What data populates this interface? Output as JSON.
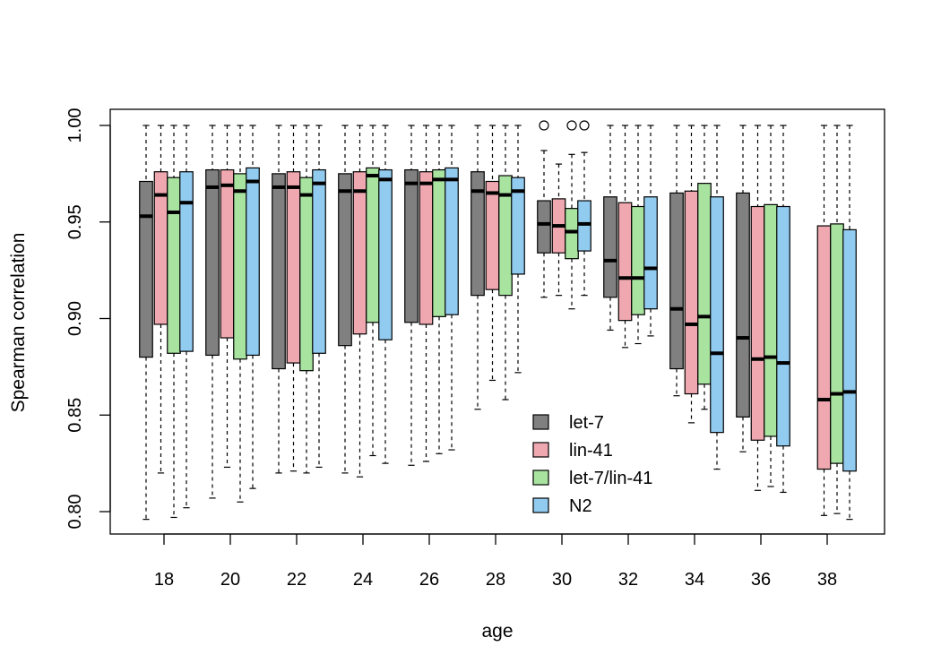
{
  "chart_data": {
    "type": "boxplot",
    "title": "",
    "xlabel": "age",
    "ylabel": "Spearman correlation",
    "ylim": [
      0.787,
      1.005
    ],
    "yticks": [
      0.8,
      0.85,
      0.9,
      0.95,
      1.0
    ],
    "ytick_labels": [
      "0.80",
      "0.85",
      "0.90",
      "0.95",
      "1.00"
    ],
    "categories": [
      "18",
      "20",
      "22",
      "24",
      "26",
      "28",
      "30",
      "32",
      "34",
      "36",
      "38"
    ],
    "legend_position": "center-bottom inside plot",
    "series": [
      {
        "name": "let-7",
        "color": "#808080",
        "boxes": [
          {
            "min": 0.796,
            "q1": 0.88,
            "median": 0.953,
            "q3": 0.971,
            "max": 1.0
          },
          {
            "min": 0.807,
            "q1": 0.881,
            "median": 0.968,
            "q3": 0.977,
            "max": 1.0
          },
          {
            "min": 0.82,
            "q1": 0.874,
            "median": 0.968,
            "q3": 0.975,
            "max": 1.0
          },
          {
            "min": 0.82,
            "q1": 0.886,
            "median": 0.966,
            "q3": 0.975,
            "max": 1.0
          },
          {
            "min": 0.824,
            "q1": 0.898,
            "median": 0.97,
            "q3": 0.977,
            "max": 1.0
          },
          {
            "min": 0.853,
            "q1": 0.912,
            "median": 0.966,
            "q3": 0.976,
            "max": 1.0
          },
          {
            "min": 0.911,
            "q1": 0.934,
            "median": 0.949,
            "q3": 0.961,
            "max": 0.987,
            "outliers": [
              1.0
            ]
          },
          {
            "min": 0.894,
            "q1": 0.911,
            "median": 0.93,
            "q3": 0.963,
            "max": 1.0
          },
          {
            "min": 0.86,
            "q1": 0.874,
            "median": 0.905,
            "q3": 0.965,
            "max": 1.0
          },
          {
            "min": 0.831,
            "q1": 0.849,
            "median": 0.89,
            "q3": 0.965,
            "max": 1.0
          },
          null
        ]
      },
      {
        "name": "lin-41",
        "color": "#f0a8b0",
        "boxes": [
          {
            "min": 0.82,
            "q1": 0.897,
            "median": 0.964,
            "q3": 0.976,
            "max": 1.0
          },
          {
            "min": 0.823,
            "q1": 0.89,
            "median": 0.969,
            "q3": 0.977,
            "max": 1.0
          },
          {
            "min": 0.821,
            "q1": 0.877,
            "median": 0.968,
            "q3": 0.976,
            "max": 1.0
          },
          {
            "min": 0.818,
            "q1": 0.892,
            "median": 0.966,
            "q3": 0.976,
            "max": 1.0
          },
          {
            "min": 0.826,
            "q1": 0.897,
            "median": 0.97,
            "q3": 0.976,
            "max": 1.0
          },
          {
            "min": 0.868,
            "q1": 0.915,
            "median": 0.965,
            "q3": 0.971,
            "max": 1.0
          },
          {
            "min": 0.912,
            "q1": 0.934,
            "median": 0.948,
            "q3": 0.962,
            "max": 0.98
          },
          {
            "min": 0.885,
            "q1": 0.899,
            "median": 0.921,
            "q3": 0.96,
            "max": 1.0
          },
          {
            "min": 0.846,
            "q1": 0.861,
            "median": 0.897,
            "q3": 0.966,
            "max": 1.0
          },
          {
            "min": 0.811,
            "q1": 0.837,
            "median": 0.879,
            "q3": 0.958,
            "max": 1.0
          },
          {
            "min": 0.798,
            "q1": 0.822,
            "median": 0.858,
            "q3": 0.948,
            "max": 1.0
          }
        ]
      },
      {
        "name": "let-7/lin-41",
        "color": "#a8e4a0",
        "boxes": [
          {
            "min": 0.797,
            "q1": 0.882,
            "median": 0.955,
            "q3": 0.973,
            "max": 1.0
          },
          {
            "min": 0.805,
            "q1": 0.879,
            "median": 0.966,
            "q3": 0.975,
            "max": 1.0
          },
          {
            "min": 0.82,
            "q1": 0.873,
            "median": 0.964,
            "q3": 0.973,
            "max": 1.0
          },
          {
            "min": 0.829,
            "q1": 0.898,
            "median": 0.974,
            "q3": 0.978,
            "max": 1.0
          },
          {
            "min": 0.83,
            "q1": 0.901,
            "median": 0.972,
            "q3": 0.977,
            "max": 1.0
          },
          {
            "min": 0.858,
            "q1": 0.912,
            "median": 0.964,
            "q3": 0.974,
            "max": 1.0
          },
          {
            "min": 0.905,
            "q1": 0.931,
            "median": 0.945,
            "q3": 0.957,
            "max": 0.985,
            "outliers": [
              1.0
            ]
          },
          {
            "min": 0.887,
            "q1": 0.902,
            "median": 0.921,
            "q3": 0.958,
            "max": 1.0
          },
          {
            "min": 0.853,
            "q1": 0.866,
            "median": 0.901,
            "q3": 0.97,
            "max": 1.0
          },
          {
            "min": 0.813,
            "q1": 0.839,
            "median": 0.88,
            "q3": 0.959,
            "max": 1.0
          },
          {
            "min": 0.799,
            "q1": 0.825,
            "median": 0.861,
            "q3": 0.949,
            "max": 1.0
          }
        ]
      },
      {
        "name": "N2",
        "color": "#92cbf0",
        "boxes": [
          {
            "min": 0.802,
            "q1": 0.883,
            "median": 0.96,
            "q3": 0.976,
            "max": 1.0
          },
          {
            "min": 0.812,
            "q1": 0.881,
            "median": 0.971,
            "q3": 0.978,
            "max": 1.0
          },
          {
            "min": 0.823,
            "q1": 0.882,
            "median": 0.97,
            "q3": 0.977,
            "max": 1.0
          },
          {
            "min": 0.825,
            "q1": 0.889,
            "median": 0.972,
            "q3": 0.977,
            "max": 1.0
          },
          {
            "min": 0.832,
            "q1": 0.902,
            "median": 0.972,
            "q3": 0.978,
            "max": 1.0
          },
          {
            "min": 0.872,
            "q1": 0.923,
            "median": 0.966,
            "q3": 0.973,
            "max": 1.0
          },
          {
            "min": 0.912,
            "q1": 0.935,
            "median": 0.949,
            "q3": 0.961,
            "max": 0.986,
            "outliers": [
              1.0
            ]
          },
          {
            "min": 0.891,
            "q1": 0.905,
            "median": 0.926,
            "q3": 0.963,
            "max": 1.0
          },
          {
            "min": 0.822,
            "q1": 0.841,
            "median": 0.882,
            "q3": 0.963,
            "max": 1.0
          },
          {
            "min": 0.81,
            "q1": 0.834,
            "median": 0.877,
            "q3": 0.958,
            "max": 1.0
          },
          {
            "min": 0.796,
            "q1": 0.821,
            "median": 0.862,
            "q3": 0.946,
            "max": 1.0
          }
        ]
      }
    ]
  }
}
